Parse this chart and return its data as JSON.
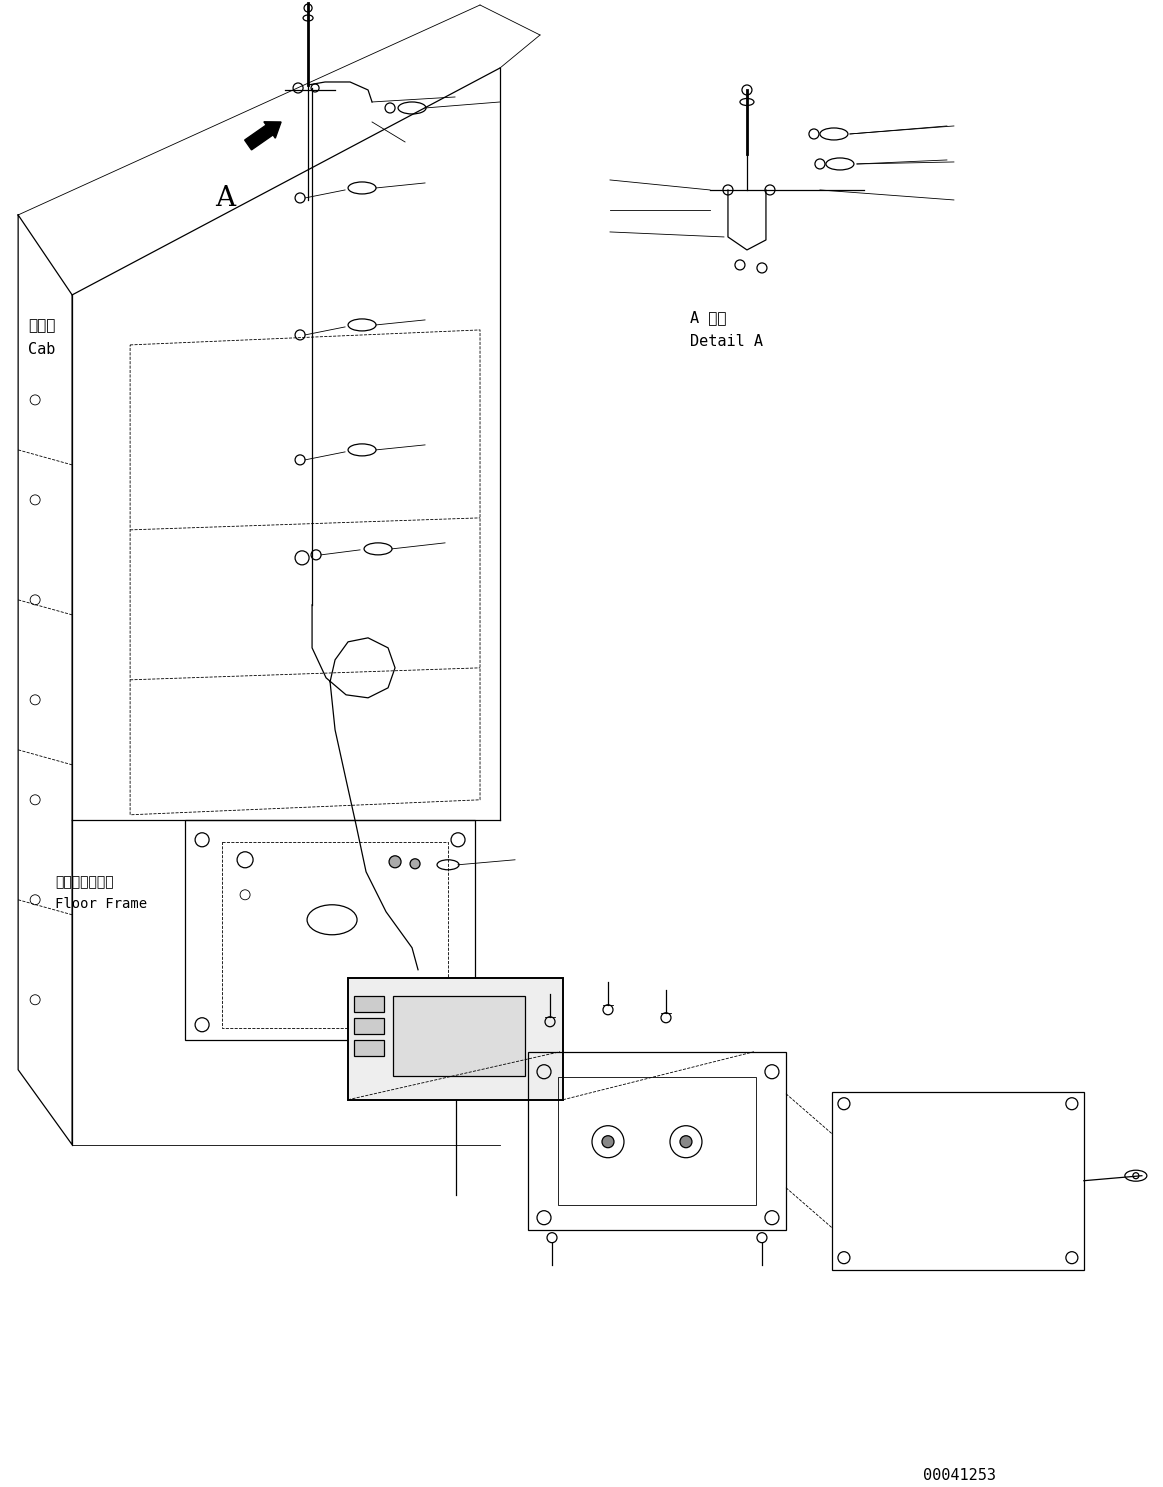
{
  "figsize": [
    11.63,
    14.87
  ],
  "dpi": 100,
  "bg_color": "#ffffff",
  "line_color": "#000000",
  "title_id": "00041253",
  "labels": {
    "cab_jp": "キャブ",
    "cab_en": "Cab",
    "floor_jp": "フロアフレーム",
    "floor_en": "Floor Frame",
    "detail_jp": "A 詳細",
    "detail_en": "Detail A",
    "label_A": "A"
  }
}
